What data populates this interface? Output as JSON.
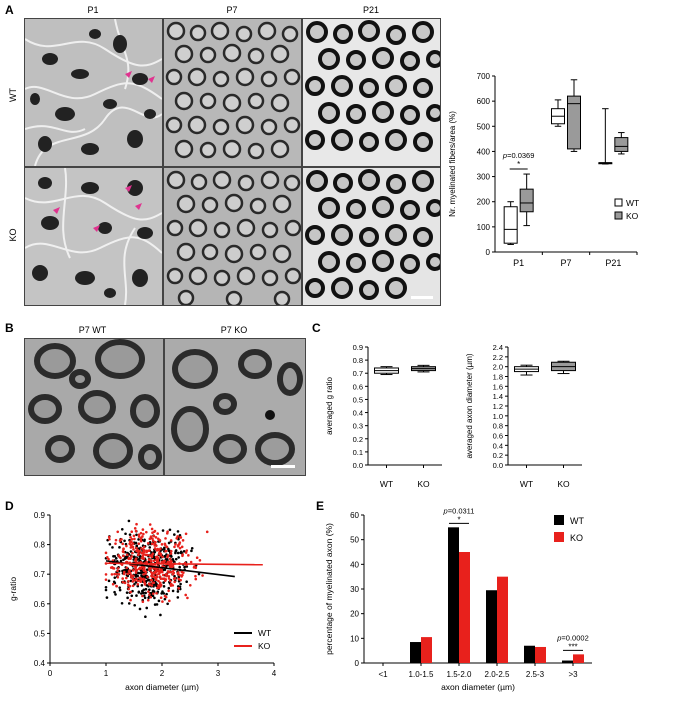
{
  "panels": {
    "A": {
      "letter": "A",
      "columns": [
        "P1",
        "P7",
        "P21"
      ],
      "rows": [
        "WT",
        "KO"
      ],
      "chart_data": {
        "type": "box",
        "ylabel": "Nr. myelinated fibers/area (%)",
        "ylim": [
          0,
          700
        ],
        "yticks": [
          0,
          100,
          200,
          300,
          400,
          500,
          600,
          700
        ],
        "categories": [
          "P1",
          "P7",
          "P21"
        ],
        "legend": [
          {
            "name": "WT",
            "color": "#ffffff"
          },
          {
            "name": "KO",
            "color": "#9a9a9a"
          }
        ],
        "legend_position": "right",
        "series": [
          {
            "name": "WT",
            "color": "#ffffff",
            "boxes": [
              {
                "min": 30,
                "q1": 35,
                "median": 90,
                "q3": 180,
                "max": 200
              },
              {
                "min": 500,
                "q1": 510,
                "median": 540,
                "q3": 570,
                "max": 605
              },
              {
                "min": 350,
                "q1": 355,
                "median": 355,
                "q3": 355,
                "max": 570
              }
            ]
          },
          {
            "name": "KO",
            "color": "#9a9a9a",
            "boxes": [
              {
                "min": 105,
                "q1": 160,
                "median": 195,
                "q3": 250,
                "max": 310
              },
              {
                "min": 400,
                "q1": 410,
                "median": 590,
                "q3": 620,
                "max": 685
              },
              {
                "min": 390,
                "q1": 400,
                "median": 420,
                "q3": 455,
                "max": 475
              }
            ]
          }
        ],
        "annotation": {
          "p_label": "p",
          "p_value": "=0.0369",
          "stars": "*"
        }
      }
    },
    "B": {
      "letter": "B",
      "labels": [
        "P7 WT",
        "P7 KO"
      ]
    },
    "C": {
      "letter": "C",
      "charts": [
        {
          "type": "box",
          "ylabel": "averaged g ratio",
          "ylim": [
            0.0,
            0.9
          ],
          "yticks": [
            "0.0",
            "0.1",
            "0.2",
            "0.3",
            "0.4",
            "0.5",
            "0.6",
            "0.7",
            "0.8",
            "0.9"
          ],
          "categories": [
            "WT",
            "KO"
          ],
          "boxes": [
            {
              "name": "WT",
              "color": "#ffffff",
              "min": 0.69,
              "q1": 0.7,
              "median": 0.72,
              "q3": 0.74,
              "max": 0.75
            },
            {
              "name": "KO",
              "color": "#9a9a9a",
              "min": 0.71,
              "q1": 0.72,
              "median": 0.735,
              "q3": 0.75,
              "max": 0.76
            }
          ]
        },
        {
          "type": "box",
          "ylabel": "averaged axon diameter (µm)",
          "ylim": [
            0.0,
            2.4
          ],
          "yticks": [
            "0.0",
            "0.2",
            "0.4",
            "0.6",
            "0.8",
            "1.0",
            "1.2",
            "1.4",
            "1.6",
            "1.8",
            "2.0",
            "2.2",
            "2.4"
          ],
          "categories": [
            "WT",
            "KO"
          ],
          "boxes": [
            {
              "name": "WT",
              "color": "#ffffff",
              "min": 1.83,
              "q1": 1.9,
              "median": 1.95,
              "q3": 2.0,
              "max": 2.03
            },
            {
              "name": "KO",
              "color": "#9a9a9a",
              "min": 1.86,
              "q1": 1.92,
              "median": 2.0,
              "q3": 2.09,
              "max": 2.11
            }
          ]
        }
      ]
    },
    "D": {
      "letter": "D",
      "chart_data": {
        "type": "scatter",
        "xlabel": "axon diameter (µm)",
        "ylabel": "g-ratio",
        "xlim": [
          0,
          4
        ],
        "ylim": [
          0.4,
          0.9
        ],
        "xticks": [
          0,
          1,
          2,
          3,
          4
        ],
        "yticks": [
          "0.4",
          "0.5",
          "0.6",
          "0.7",
          "0.8",
          "0.9"
        ],
        "legend": [
          {
            "name": "WT",
            "color": "#000000"
          },
          {
            "name": "KO",
            "color": "#e8211c"
          }
        ],
        "legend_position": "bottom-right",
        "series": [
          {
            "name": "WT",
            "color": "#000000",
            "x_range": [
              1.0,
              3.5
            ],
            "center": [
              1.8,
              0.72
            ],
            "fit": [
              [
                1.0,
                0.745
              ],
              [
                3.3,
                0.692
              ]
            ]
          },
          {
            "name": "KO",
            "color": "#e8211c",
            "x_range": [
              1.0,
              3.9
            ],
            "center": [
              1.8,
              0.74
            ],
            "fit": [
              [
                1.0,
                0.737
              ],
              [
                3.8,
                0.732
              ]
            ]
          }
        ]
      }
    },
    "E": {
      "letter": "E",
      "chart_data": {
        "type": "bar",
        "xlabel": "axon diameter (µm)",
        "ylabel": "percentage of myelinated axon (%)",
        "ylim": [
          0,
          60
        ],
        "yticks": [
          0,
          10,
          20,
          30,
          40,
          50,
          60
        ],
        "categories": [
          "<1",
          "1.0-1.5",
          "1.5-2.0",
          "2.0-2.5",
          "2.5-3",
          ">3"
        ],
        "series": [
          {
            "name": "WT",
            "color": "#000000",
            "values": [
              0,
              8.5,
              55,
              29.5,
              7,
              1
            ]
          },
          {
            "name": "KO",
            "color": "#e8211c",
            "values": [
              0,
              10.5,
              45,
              35,
              6.5,
              3.5
            ]
          }
        ],
        "legend_position": "top-right",
        "annotations": [
          {
            "category": "1.5-2.0",
            "p_label": "p",
            "p_value": "=0.0311",
            "stars": "*"
          },
          {
            "category": ">3",
            "p_label": "p",
            "p_value": "=0.0002",
            "stars": "***"
          }
        ]
      }
    }
  }
}
